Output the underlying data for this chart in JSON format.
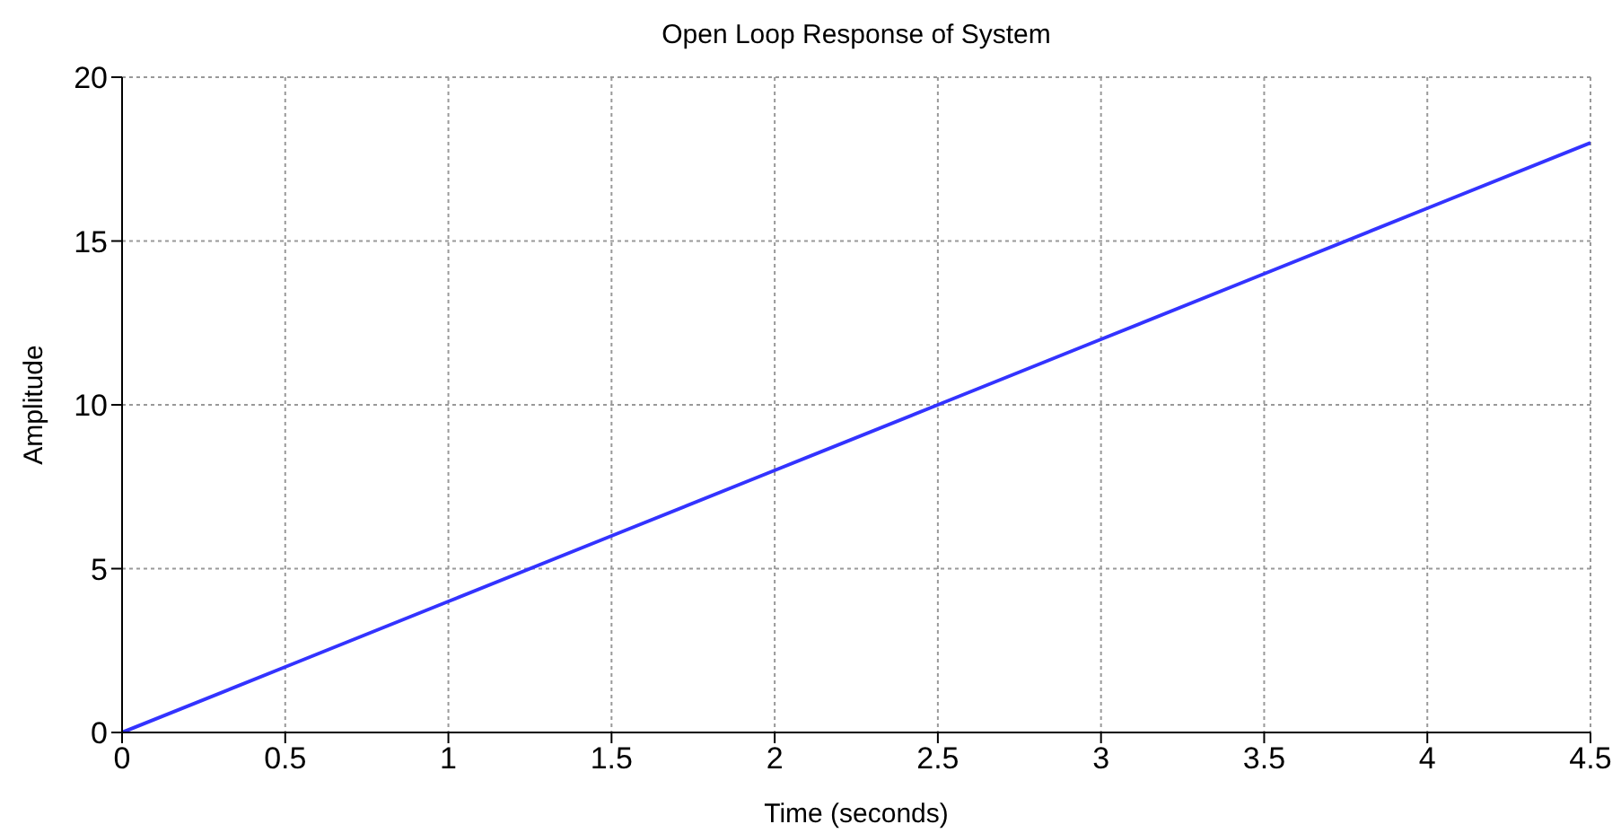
{
  "chart_data": {
    "type": "line",
    "title": "Open Loop Response of System",
    "xlabel": "Time (seconds)",
    "ylabel": "Amplitude",
    "x": [
      0,
      0.5,
      1,
      1.5,
      2,
      2.5,
      3,
      3.5,
      4,
      4.5
    ],
    "series": [
      {
        "color": "#3333ff",
        "values": [
          0,
          2,
          4,
          6,
          8,
          10,
          12,
          14,
          16,
          18
        ]
      }
    ],
    "xlim": [
      0,
      4.5
    ],
    "xticks": [
      0,
      0.5,
      1,
      1.5,
      2,
      2.5,
      3,
      3.5,
      4,
      4.5
    ],
    "ylim": [
      0,
      20
    ],
    "yticks": [
      0,
      5,
      10,
      15,
      20
    ],
    "grid": true,
    "legend": false,
    "marker": "none",
    "line_style": "solid"
  }
}
